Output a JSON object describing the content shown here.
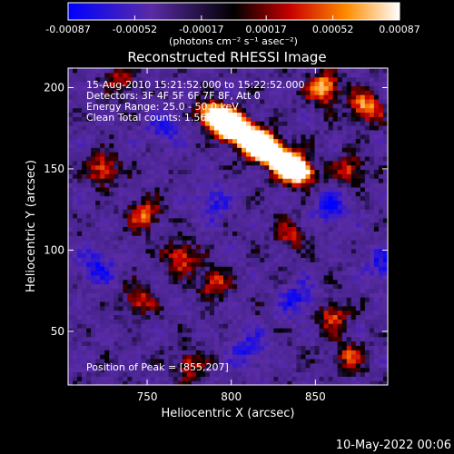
{
  "chart_data": {
    "type": "heatmap",
    "title": "Reconstructed RHESSI Image",
    "xlabel": "Heliocentric X (arcsec)",
    "ylabel": "Heliocentric Y (arcsec)",
    "xlim": [
      703,
      893
    ],
    "ylim": [
      17,
      212
    ],
    "x_ticks": [
      750,
      800,
      850
    ],
    "y_ticks": [
      50,
      100,
      150,
      200
    ],
    "x_tick_labels": [
      "750",
      "800",
      "850"
    ],
    "y_tick_labels": [
      "50",
      "100",
      "150",
      "200"
    ],
    "grid": false,
    "colorbar": {
      "range": [
        -0.00087,
        0.00087
      ],
      "tick_values": [
        -0.00087,
        -0.00052,
        -0.00017,
        0.00017,
        0.00052,
        0.00087
      ],
      "tick_labels": [
        "-0.00087",
        "-0.00052",
        "-0.00017",
        "0.00017",
        "0.00052",
        "0.00087"
      ],
      "units_label": "(photons cm⁻² s⁻¹ asec⁻²)",
      "colors": [
        "#0000ff",
        "#5a2ba6",
        "#000000",
        "#c80000",
        "#ff8c00",
        "#ffffff"
      ]
    },
    "annotations": {
      "time_range": "15-Aug-2010 15:21:52.000 to 15:22:52.000",
      "detectors": "Detectors: 3F 4F 5F 6F 7F 8F, Att 0",
      "energy_range": "Energy Range: 25.0 - 50.0 keV",
      "clean_counts": "Clean    Total counts: 1.56E+03",
      "peak_position": "Position of Peak = [855,207]"
    },
    "peak": [
      855,
      207
    ],
    "hot_regions": [
      {
        "x": 800,
        "y": 178,
        "intensity": 1.0
      },
      {
        "x": 817,
        "y": 166,
        "intensity": 0.95
      },
      {
        "x": 834,
        "y": 152,
        "intensity": 0.8
      },
      {
        "x": 855,
        "y": 200,
        "intensity": 0.95
      },
      {
        "x": 880,
        "y": 188,
        "intensity": 0.85
      },
      {
        "x": 724,
        "y": 150,
        "intensity": 0.65
      },
      {
        "x": 748,
        "y": 122,
        "intensity": 0.7
      },
      {
        "x": 770,
        "y": 96,
        "intensity": 0.7
      },
      {
        "x": 790,
        "y": 80,
        "intensity": 0.6
      },
      {
        "x": 745,
        "y": 70,
        "intensity": 0.55
      },
      {
        "x": 860,
        "y": 60,
        "intensity": 0.6
      },
      {
        "x": 870,
        "y": 35,
        "intensity": 0.55
      },
      {
        "x": 775,
        "y": 30,
        "intensity": 0.5
      },
      {
        "x": 835,
        "y": 110,
        "intensity": 0.45
      },
      {
        "x": 870,
        "y": 150,
        "intensity": 0.55
      },
      {
        "x": 735,
        "y": 205,
        "intensity": 0.5
      }
    ],
    "cold_regions": [
      {
        "x": 720,
        "y": 90,
        "intensity": -0.5
      },
      {
        "x": 790,
        "y": 130,
        "intensity": -0.45
      },
      {
        "x": 840,
        "y": 70,
        "intensity": -0.5
      },
      {
        "x": 810,
        "y": 40,
        "intensity": -0.45
      },
      {
        "x": 860,
        "y": 125,
        "intensity": -0.5
      },
      {
        "x": 760,
        "y": 175,
        "intensity": -0.4
      },
      {
        "x": 890,
        "y": 90,
        "intensity": -0.45
      }
    ]
  },
  "footer": {
    "date": "10-May-2022 00:06"
  }
}
